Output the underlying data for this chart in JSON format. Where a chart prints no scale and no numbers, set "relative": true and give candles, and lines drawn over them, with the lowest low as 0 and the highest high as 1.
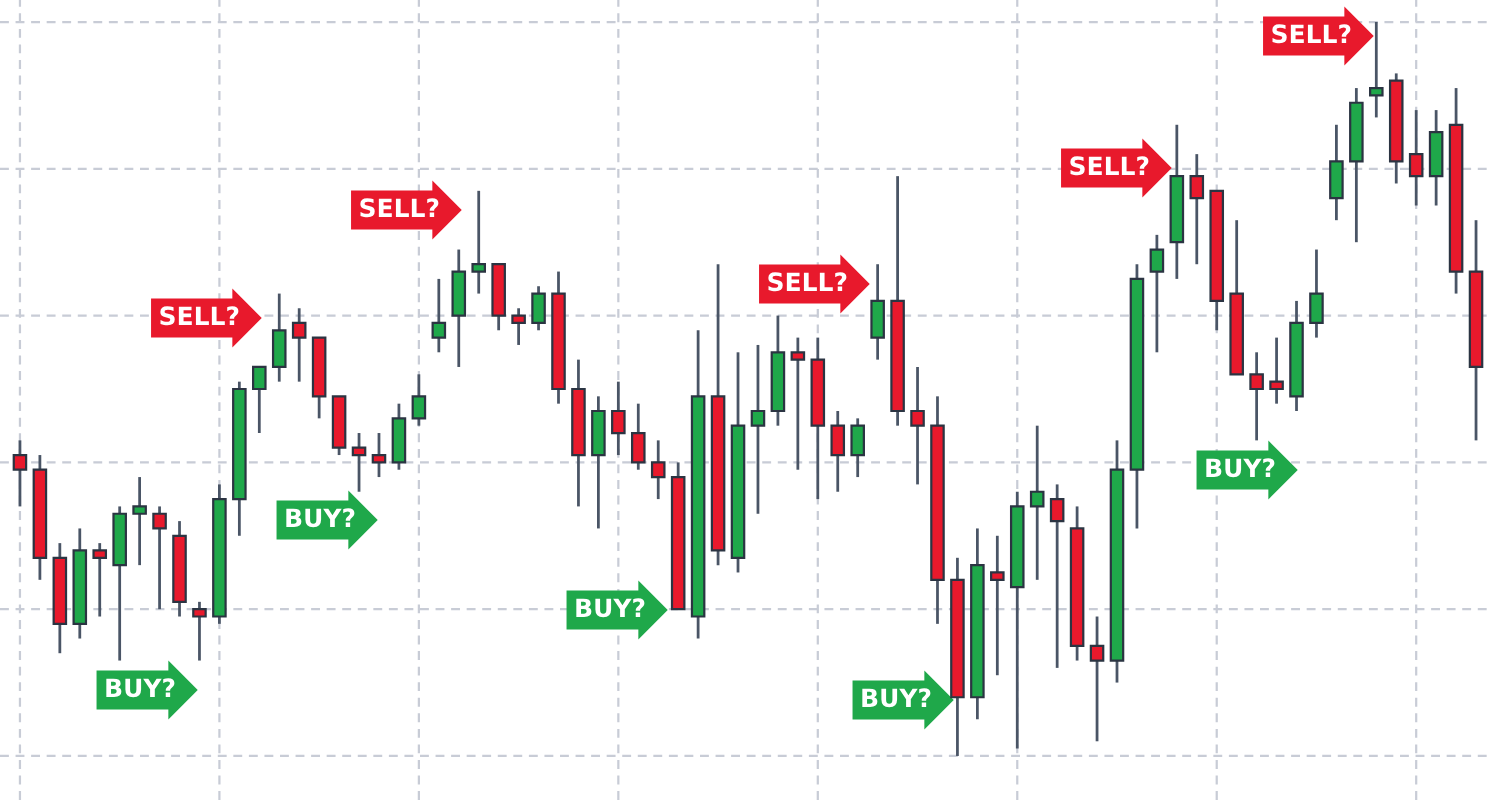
{
  "chart_data": {
    "type": "candlestick",
    "relative": true,
    "grid": true,
    "tick_labels": false,
    "categories": [
      null,
      null,
      null,
      null,
      null,
      null,
      null,
      null,
      null,
      null,
      null,
      null,
      null,
      null,
      null,
      null,
      null,
      null,
      null,
      null,
      null,
      null,
      null,
      null,
      null,
      null,
      null,
      null,
      null,
      null,
      null,
      null,
      null,
      null,
      null,
      null,
      null,
      null,
      null,
      null,
      null,
      null,
      null,
      null,
      null,
      null,
      null,
      null,
      null,
      null,
      null,
      null,
      null,
      null,
      null,
      null,
      null,
      null,
      null,
      null,
      null,
      null,
      null,
      null,
      null,
      null,
      null,
      null,
      null,
      null,
      null,
      null,
      null,
      null
    ],
    "ohlc": [
      [
        0.41,
        0.43,
        0.34,
        0.39
      ],
      [
        0.39,
        0.41,
        0.24,
        0.27
      ],
      [
        0.27,
        0.29,
        0.14,
        0.18
      ],
      [
        0.18,
        0.31,
        0.16,
        0.28
      ],
      [
        0.28,
        0.29,
        0.19,
        0.27
      ],
      [
        0.26,
        0.34,
        0.13,
        0.33
      ],
      [
        0.33,
        0.38,
        0.26,
        0.34
      ],
      [
        0.33,
        0.34,
        0.2,
        0.31
      ],
      [
        0.3,
        0.32,
        0.19,
        0.21
      ],
      [
        0.2,
        0.21,
        0.13,
        0.19
      ],
      [
        0.19,
        0.37,
        0.18,
        0.35
      ],
      [
        0.35,
        0.51,
        0.3,
        0.5
      ],
      [
        0.5,
        0.53,
        0.44,
        0.53
      ],
      [
        0.53,
        0.63,
        0.51,
        0.58
      ],
      [
        0.59,
        0.61,
        0.51,
        0.57
      ],
      [
        0.57,
        0.57,
        0.46,
        0.49
      ],
      [
        0.49,
        0.49,
        0.41,
        0.42
      ],
      [
        0.42,
        0.44,
        0.36,
        0.41
      ],
      [
        0.41,
        0.44,
        0.38,
        0.4
      ],
      [
        0.4,
        0.48,
        0.39,
        0.46
      ],
      [
        0.46,
        0.52,
        0.45,
        0.49
      ],
      [
        0.57,
        0.65,
        0.55,
        0.59
      ],
      [
        0.6,
        0.69,
        0.53,
        0.66
      ],
      [
        0.66,
        0.77,
        0.63,
        0.67
      ],
      [
        0.67,
        0.67,
        0.58,
        0.6
      ],
      [
        0.6,
        0.61,
        0.56,
        0.59
      ],
      [
        0.59,
        0.64,
        0.58,
        0.63
      ],
      [
        0.63,
        0.66,
        0.48,
        0.5
      ],
      [
        0.5,
        0.54,
        0.34,
        0.41
      ],
      [
        0.41,
        0.49,
        0.31,
        0.47
      ],
      [
        0.47,
        0.51,
        0.41,
        0.44
      ],
      [
        0.44,
        0.48,
        0.39,
        0.4
      ],
      [
        0.4,
        0.43,
        0.35,
        0.38
      ],
      [
        0.38,
        0.4,
        0.2,
        0.2
      ],
      [
        0.19,
        0.58,
        0.16,
        0.49
      ],
      [
        0.49,
        0.67,
        0.26,
        0.28
      ],
      [
        0.27,
        0.55,
        0.25,
        0.45
      ],
      [
        0.45,
        0.56,
        0.33,
        0.47
      ],
      [
        0.47,
        0.6,
        0.45,
        0.55
      ],
      [
        0.55,
        0.57,
        0.39,
        0.54
      ],
      [
        0.54,
        0.57,
        0.35,
        0.45
      ],
      [
        0.45,
        0.47,
        0.36,
        0.41
      ],
      [
        0.41,
        0.46,
        0.38,
        0.45
      ],
      [
        0.57,
        0.67,
        0.54,
        0.62
      ],
      [
        0.62,
        0.79,
        0.45,
        0.47
      ],
      [
        0.47,
        0.53,
        0.37,
        0.45
      ],
      [
        0.45,
        0.49,
        0.18,
        0.24
      ],
      [
        0.24,
        0.27,
        0.0,
        0.08
      ],
      [
        0.08,
        0.31,
        0.05,
        0.26
      ],
      [
        0.25,
        0.3,
        0.11,
        0.24
      ],
      [
        0.23,
        0.36,
        0.01,
        0.34
      ],
      [
        0.34,
        0.45,
        0.24,
        0.36
      ],
      [
        0.35,
        0.37,
        0.12,
        0.32
      ],
      [
        0.31,
        0.34,
        0.13,
        0.15
      ],
      [
        0.15,
        0.19,
        0.02,
        0.13
      ],
      [
        0.13,
        0.43,
        0.1,
        0.39
      ],
      [
        0.39,
        0.67,
        0.31,
        0.65
      ],
      [
        0.66,
        0.71,
        0.55,
        0.69
      ],
      [
        0.7,
        0.86,
        0.65,
        0.79
      ],
      [
        0.79,
        0.82,
        0.67,
        0.76
      ],
      [
        0.77,
        0.77,
        0.58,
        0.62
      ],
      [
        0.63,
        0.73,
        0.52,
        0.52
      ],
      [
        0.52,
        0.55,
        0.43,
        0.5
      ],
      [
        0.51,
        0.57,
        0.48,
        0.5
      ],
      [
        0.49,
        0.62,
        0.47,
        0.59
      ],
      [
        0.59,
        0.69,
        0.57,
        0.63
      ],
      [
        0.76,
        0.86,
        0.73,
        0.81
      ],
      [
        0.81,
        0.91,
        0.7,
        0.89
      ],
      [
        0.9,
        1.0,
        0.87,
        0.91
      ],
      [
        0.92,
        0.93,
        0.78,
        0.81
      ],
      [
        0.82,
        0.88,
        0.75,
        0.79
      ],
      [
        0.79,
        0.88,
        0.75,
        0.85
      ],
      [
        0.86,
        0.91,
        0.63,
        0.66
      ],
      [
        0.66,
        0.73,
        0.43,
        0.53
      ]
    ],
    "colors": [
      "#e8192c",
      "#e8192c",
      "#e8192c",
      "#1fa84a",
      "#e8192c",
      "#1fa84a",
      "#1fa84a",
      "#e8192c",
      "#e8192c",
      "#e8192c",
      "#1fa84a",
      "#1fa84a",
      "#1fa84a",
      "#1fa84a",
      "#e8192c",
      "#e8192c",
      "#e8192c",
      "#e8192c",
      "#e8192c",
      "#1fa84a",
      "#1fa84a",
      "#1fa84a",
      "#1fa84a",
      "#1fa84a",
      "#e8192c",
      "#e8192c",
      "#1fa84a",
      "#e8192c",
      "#e8192c",
      "#1fa84a",
      "#e8192c",
      "#e8192c",
      "#e8192c",
      "#e8192c",
      "#1fa84a",
      "#e8192c",
      "#1fa84a",
      "#1fa84a",
      "#1fa84a",
      "#e8192c",
      "#e8192c",
      "#e8192c",
      "#1fa84a",
      "#1fa84a",
      "#e8192c",
      "#e8192c",
      "#e8192c",
      "#e8192c",
      "#1fa84a",
      "#e8192c",
      "#1fa84a",
      "#1fa84a",
      "#e8192c",
      "#e8192c",
      "#e8192c",
      "#1fa84a",
      "#1fa84a",
      "#1fa84a",
      "#1fa84a",
      "#e8192c",
      "#e8192c",
      "#e8192c",
      "#e8192c",
      "#e8192c",
      "#1fa84a",
      "#1fa84a",
      "#1fa84a",
      "#1fa84a",
      "#1fa84a",
      "#e8192c",
      "#e8192c",
      "#1fa84a",
      "#e8192c",
      "#e8192c"
    ],
    "annotations": [
      "BUY?",
      "SELL?",
      "BUY?",
      "SELL?",
      "BUY?",
      "SELL?",
      "BUY?",
      "SELL?",
      "BUY?",
      "SELL?"
    ]
  }
}
